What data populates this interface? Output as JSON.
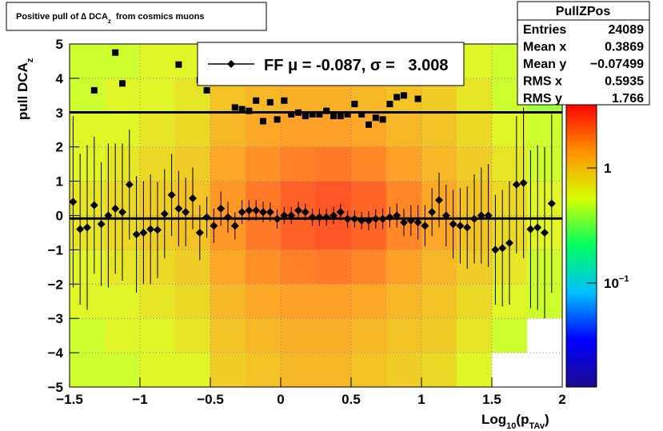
{
  "chart_data": {
    "type": "profile2d",
    "title": [
      "Positive pull of ∆ DCA",
      "z",
      "from cosmics muons"
    ],
    "xlabel": [
      "Log",
      "10",
      "(p",
      "TAv",
      ")"
    ],
    "ylabel": [
      "pull DCA",
      "z"
    ],
    "xlim": [
      -1.5,
      2
    ],
    "ylim": [
      -5,
      5
    ],
    "xticks": [
      {
        "value": -1.5,
        "label": "−1.5"
      },
      {
        "value": -1,
        "label": "−1"
      },
      {
        "value": -0.5,
        "label": "−0.5"
      },
      0,
      0.5,
      1,
      1.5,
      2
    ],
    "yticks": [
      {
        "value": -5,
        "label": "−5"
      },
      {
        "value": -4,
        "label": "−4"
      },
      {
        "value": -3,
        "label": "−3"
      },
      {
        "value": -2,
        "label": "−2"
      },
      {
        "value": -1,
        "label": "−1"
      },
      0,
      1,
      2,
      3,
      4,
      5
    ],
    "grid": true,
    "zlim": [
      0.0125,
      3.6
    ],
    "zlog": true,
    "zticks": [
      {
        "value": 0.1,
        "label": "10",
        "exponent": "−1"
      },
      1
    ],
    "palette": [
      "#1a0a8f",
      "#0000ff",
      "#00c0ff",
      "#00ff60",
      "#d8ff00",
      "#ff9000",
      "#ff0000"
    ],
    "heatmap": {
      "xedges": [
        -1.5,
        -1.25,
        -1,
        -0.75,
        -0.5,
        -0.25,
        0,
        0.25,
        0.5,
        0.75,
        1,
        1.25,
        1.5,
        1.75,
        2
      ],
      "yedges": [
        -5,
        -4,
        -3,
        -2,
        -1,
        0,
        1,
        2,
        3,
        4,
        5
      ],
      "values": [
        [
          0.5,
          0.5,
          0.6,
          0.6,
          0.9,
          1.0,
          1.1,
          1.1,
          1.0,
          0.9,
          0.8,
          0.6,
          0,
          0
        ],
        [
          0.5,
          0.6,
          0.6,
          0.7,
          1.0,
          1.1,
          1.2,
          1.2,
          1.1,
          1.0,
          0.9,
          0.7,
          0.5,
          0
        ],
        [
          0.6,
          0.6,
          0.7,
          0.8,
          1.1,
          1.3,
          1.4,
          1.4,
          1.3,
          1.1,
          1.0,
          0.8,
          0.6,
          0.5
        ],
        [
          0.6,
          0.7,
          0.8,
          0.9,
          1.3,
          1.6,
          1.8,
          1.9,
          1.7,
          1.4,
          1.1,
          0.9,
          0.7,
          0.5
        ],
        [
          0.7,
          0.8,
          0.9,
          1.0,
          1.5,
          1.9,
          2.3,
          2.5,
          2.2,
          1.7,
          1.3,
          1.0,
          0.8,
          0.6
        ],
        [
          0.7,
          0.8,
          0.9,
          1.0,
          1.5,
          1.9,
          2.3,
          2.5,
          2.2,
          1.7,
          1.3,
          1.0,
          0.8,
          0.6
        ],
        [
          0.6,
          0.7,
          0.8,
          0.9,
          1.3,
          1.6,
          1.8,
          1.9,
          1.7,
          1.4,
          1.1,
          0.9,
          0.7,
          0.5
        ],
        [
          0.6,
          0.6,
          0.7,
          0.8,
          1.1,
          1.3,
          1.4,
          1.4,
          1.3,
          1.1,
          1.0,
          0.8,
          0.6,
          0.5
        ],
        [
          0.5,
          0.6,
          0.6,
          0.7,
          1.0,
          1.1,
          1.2,
          1.2,
          1.1,
          1.0,
          0.9,
          0.7,
          0.5,
          0.4
        ],
        [
          0.5,
          0.5,
          0.6,
          0.6,
          0.9,
          1.0,
          1.1,
          1.1,
          1.0,
          0.9,
          0.8,
          0.6,
          0.5,
          0.4
        ]
      ]
    },
    "series": [
      {
        "marker": "diamond",
        "color": "#000000",
        "x": [
          -1.475,
          -1.425,
          -1.375,
          -1.325,
          -1.275,
          -1.225,
          -1.175,
          -1.125,
          -1.075,
          -1.025,
          -0.975,
          -0.925,
          -0.875,
          -0.825,
          -0.775,
          -0.725,
          -0.675,
          -0.625,
          -0.575,
          -0.525,
          -0.475,
          -0.425,
          -0.375,
          -0.325,
          -0.275,
          -0.225,
          -0.175,
          -0.125,
          -0.075,
          -0.025,
          0.025,
          0.075,
          0.125,
          0.175,
          0.225,
          0.275,
          0.325,
          0.375,
          0.425,
          0.475,
          0.525,
          0.575,
          0.625,
          0.675,
          0.725,
          0.775,
          0.825,
          0.875,
          0.925,
          0.975,
          1.025,
          1.075,
          1.125,
          1.175,
          1.225,
          1.275,
          1.325,
          1.375,
          1.425,
          1.475,
          1.525,
          1.575,
          1.625,
          1.675,
          1.725,
          1.775,
          1.825,
          1.875,
          1.925
        ],
        "values": [
          0.4,
          -0.4,
          -0.35,
          0.3,
          -0.25,
          0.0,
          0.2,
          0.1,
          0.9,
          -0.55,
          -0.5,
          -0.4,
          -0.42,
          0.05,
          0.6,
          0.2,
          0.1,
          0.5,
          -0.5,
          -0.05,
          -0.3,
          0.2,
          -0.05,
          -0.3,
          0.1,
          0.15,
          0.15,
          0.1,
          0.1,
          -0.1,
          0.0,
          0.0,
          0.15,
          0.1,
          -0.05,
          -0.05,
          -0.05,
          0.0,
          0.1,
          -0.1,
          -0.1,
          -0.15,
          -0.15,
          -0.1,
          -0.1,
          -0.05,
          0.0,
          -0.2,
          -0.15,
          -0.2,
          -0.3,
          0.1,
          0.45,
          0.0,
          -0.25,
          -0.3,
          -0.35,
          -0.1,
          0.0,
          0.0,
          -1.0,
          -0.95,
          -0.8,
          0.9,
          0.95,
          -0.4,
          -0.35,
          -0.5,
          0.35
        ],
        "errors": [
          2.5,
          2.2,
          2.4,
          2.0,
          1.8,
          2.1,
          1.9,
          2.0,
          1.6,
          1.7,
          1.5,
          1.6,
          1.4,
          1.3,
          1.2,
          1.1,
          1.0,
          0.9,
          0.8,
          0.6,
          0.5,
          0.5,
          0.45,
          0.4,
          0.35,
          0.3,
          0.3,
          0.3,
          0.28,
          0.28,
          0.25,
          0.25,
          0.25,
          0.25,
          0.25,
          0.25,
          0.25,
          0.25,
          0.25,
          0.25,
          0.25,
          0.25,
          0.28,
          0.28,
          0.3,
          0.3,
          0.35,
          0.4,
          0.45,
          0.5,
          0.6,
          0.7,
          0.8,
          0.9,
          1.0,
          1.1,
          1.2,
          1.3,
          1.4,
          1.5,
          1.6,
          1.7,
          1.8,
          2.0,
          2.2,
          2.3,
          2.4,
          2.5,
          2.6
        ]
      },
      {
        "marker": "square",
        "color": "#000000",
        "x": [
          -1.325,
          -1.175,
          -1.125,
          -0.725,
          -0.575,
          -0.525,
          -0.325,
          -0.275,
          -0.225,
          -0.175,
          -0.125,
          -0.075,
          -0.025,
          0.025,
          0.075,
          0.125,
          0.175,
          0.225,
          0.275,
          0.325,
          0.375,
          0.425,
          0.475,
          0.525,
          0.575,
          0.625,
          0.675,
          0.725,
          0.775,
          0.825,
          0.875,
          0.975
        ],
        "values": [
          3.65,
          4.75,
          3.85,
          4.4,
          3.95,
          3.65,
          3.15,
          3.1,
          3.05,
          3.35,
          2.75,
          3.3,
          2.8,
          3.35,
          2.95,
          3.0,
          2.9,
          2.95,
          2.95,
          3.05,
          2.9,
          2.9,
          2.95,
          3.25,
          2.95,
          2.65,
          2.85,
          2.8,
          3.25,
          3.45,
          3.5,
          3.4
        ]
      }
    ],
    "fit": {
      "mu": -0.087,
      "sigma": 3.008
    },
    "legend": "FF μ = -0.087, σ =   3.008",
    "stats": {
      "title": "PullZPos",
      "rows": [
        [
          "Entries",
          "24089"
        ],
        [
          "Mean x",
          "0.3869"
        ],
        [
          "Mean y",
          "−0.07499"
        ],
        [
          "RMS x",
          "0.5935"
        ],
        [
          "RMS y",
          "1.766"
        ]
      ]
    }
  }
}
